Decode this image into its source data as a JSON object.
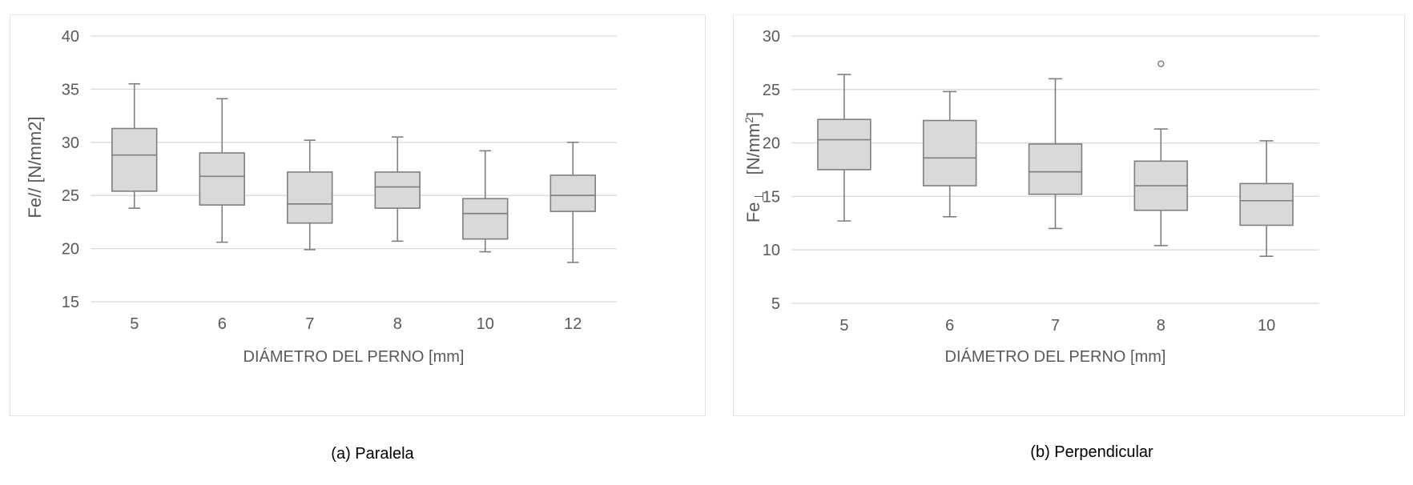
{
  "colors": {
    "box_fill": "#d9d9d9",
    "box_stroke": "#7f7f7f",
    "grid": "#d9d9d9",
    "text": "#595959",
    "caption": "#000000"
  },
  "chart_data": [
    {
      "type": "box",
      "xlabel": "DIÁMETRO DEL PERNO [mm]",
      "ylabel": "Fe//     [N/mm2]",
      "ylim": [
        15,
        40
      ],
      "yticks": [
        15,
        20,
        25,
        30,
        35,
        40
      ],
      "grid": true,
      "categories": [
        "5",
        "6",
        "7",
        "8",
        "10",
        "12"
      ],
      "boxes": [
        {
          "min": 23.8,
          "q1": 25.4,
          "median": 28.8,
          "q3": 31.3,
          "max": 35.5,
          "outliers": []
        },
        {
          "min": 20.6,
          "q1": 24.1,
          "median": 26.8,
          "q3": 29.0,
          "max": 34.1,
          "outliers": []
        },
        {
          "min": 19.9,
          "q1": 22.4,
          "median": 24.2,
          "q3": 27.2,
          "max": 30.2,
          "outliers": []
        },
        {
          "min": 20.7,
          "q1": 23.8,
          "median": 25.8,
          "q3": 27.2,
          "max": 30.5,
          "outliers": []
        },
        {
          "min": 19.7,
          "q1": 20.9,
          "median": 23.3,
          "q3": 24.7,
          "max": 29.2,
          "outliers": []
        },
        {
          "min": 18.7,
          "q1": 23.5,
          "median": 25.0,
          "q3": 26.9,
          "max": 30.0,
          "outliers": []
        }
      ]
    },
    {
      "type": "box",
      "xlabel": "DIÁMETRO DEL PERNO [mm]",
      "ylabel_main": "Fe",
      "ylabel_sub": "⊥",
      "ylabel_unit": "[N/mm",
      "ylabel_sup": "2",
      "ylabel_close": "]",
      "ylim": [
        5,
        30
      ],
      "yticks": [
        5,
        10,
        15,
        20,
        25,
        30
      ],
      "grid": true,
      "categories": [
        "5",
        "6",
        "7",
        "8",
        "10"
      ],
      "boxes": [
        {
          "min": 12.7,
          "q1": 17.5,
          "median": 20.3,
          "q3": 22.2,
          "max": 26.4,
          "outliers": []
        },
        {
          "min": 13.1,
          "q1": 16.0,
          "median": 18.6,
          "q3": 22.1,
          "max": 24.8,
          "outliers": []
        },
        {
          "min": 12.0,
          "q1": 15.2,
          "median": 17.3,
          "q3": 19.9,
          "max": 26.0,
          "outliers": []
        },
        {
          "min": 10.4,
          "q1": 13.7,
          "median": 16.0,
          "q3": 18.3,
          "max": 21.3,
          "outliers": [
            27.4
          ]
        },
        {
          "min": 9.4,
          "q1": 12.3,
          "median": 14.6,
          "q3": 16.2,
          "max": 20.2,
          "outliers": []
        }
      ]
    }
  ],
  "captions": {
    "a": "(a) Paralela",
    "b": "(b) Perpendicular"
  }
}
